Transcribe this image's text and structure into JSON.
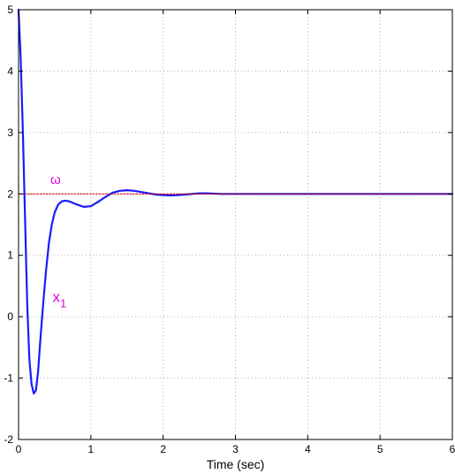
{
  "chart_data": {
    "type": "line",
    "title": "",
    "xlabel": "Time (sec)",
    "ylabel": "",
    "xlim": [
      0,
      6
    ],
    "ylim": [
      -2,
      5
    ],
    "xticks": [
      0,
      1,
      2,
      3,
      4,
      5,
      6
    ],
    "yticks": [
      -2,
      -1,
      0,
      1,
      2,
      3,
      4,
      5
    ],
    "grid": true,
    "series": [
      {
        "name": "",
        "color": "#1a1aff",
        "style": "solid",
        "x": [
          0,
          0.03,
          0.06,
          0.09,
          0.12,
          0.15,
          0.18,
          0.21,
          0.24,
          0.27,
          0.3,
          0.34,
          0.38,
          0.42,
          0.46,
          0.5,
          0.55,
          0.6,
          0.65,
          0.7,
          0.8,
          0.9,
          1.0,
          1.1,
          1.2,
          1.3,
          1.4,
          1.5,
          1.6,
          1.7,
          1.8,
          1.9,
          2.0,
          2.1,
          2.2,
          2.3,
          2.4,
          2.5,
          2.6,
          2.7,
          2.8,
          2.9,
          3.0,
          3.5,
          4.0,
          4.5,
          5.0,
          5.5,
          6.0
        ],
        "y": [
          5.0,
          4.2,
          3.0,
          1.6,
          0.2,
          -0.7,
          -1.1,
          -1.25,
          -1.2,
          -0.9,
          -0.4,
          0.2,
          0.75,
          1.2,
          1.5,
          1.7,
          1.83,
          1.88,
          1.89,
          1.88,
          1.83,
          1.79,
          1.8,
          1.87,
          1.95,
          2.02,
          2.05,
          2.06,
          2.05,
          2.03,
          2.01,
          1.99,
          1.98,
          1.975,
          1.98,
          1.99,
          2.0,
          2.01,
          2.01,
          2.005,
          2.0,
          2.0,
          2.0,
          2.0,
          2.0,
          2.0,
          2.0,
          2.0,
          2.0
        ]
      },
      {
        "name": "",
        "color": "#cc0000",
        "style": "dotted",
        "x": [
          0,
          6
        ],
        "y": [
          2,
          2
        ]
      }
    ],
    "annotations": [
      {
        "text": "ω",
        "x": 0.44,
        "y": 2.16
      },
      {
        "text": "x",
        "sub": "1",
        "x": 0.47,
        "y": 0.24
      }
    ]
  }
}
